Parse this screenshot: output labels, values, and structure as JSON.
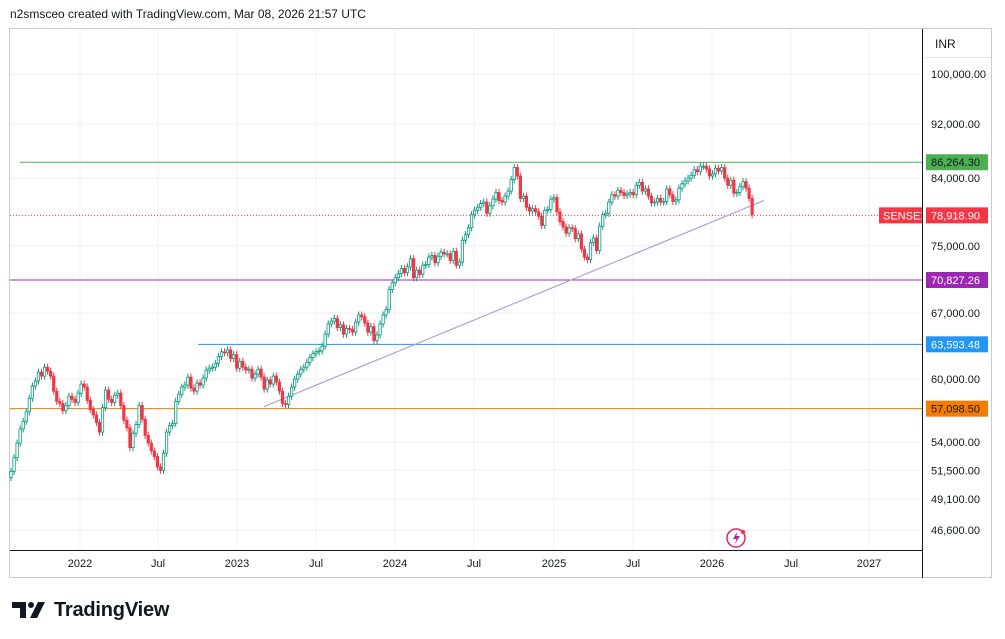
{
  "header": {
    "text": "n2smsceo created with TradingView.com, Mar 08, 2026 21:57 UTC"
  },
  "currency": "INR",
  "brand": {
    "name": "TradingView"
  },
  "chart_data": {
    "type": "candlestick",
    "symbol": "SENSEX",
    "last_price": 78918.9,
    "x_tick_labels": [
      "2022",
      "Jul",
      "2023",
      "Jul",
      "2024",
      "Jul",
      "2025",
      "Jul",
      "2026",
      "Jul",
      "2027"
    ],
    "y_tick_labels": [
      "100,000.00",
      "92,000.00",
      "84,000.00",
      "75,000.00",
      "67,000.00",
      "60,000.00",
      "54,000.00",
      "51,500.00",
      "49,100.00",
      "46,600.00"
    ],
    "horizontal_levels": [
      {
        "label": "86,264.30",
        "value": 86264.3,
        "color": "#4caf50"
      },
      {
        "label": "70,827.26",
        "value": 70827.26,
        "color": "#9c27b0"
      },
      {
        "label": "63,593.48",
        "value": 63593.48,
        "color": "#2196f3"
      },
      {
        "label": "57,098.50",
        "value": 57098.5,
        "color": "#f57c00"
      }
    ],
    "price_tag": {
      "symbol": "SENSEX",
      "label": "78,918.90",
      "color": "#f23645"
    },
    "trendline": {
      "from": {
        "date": "2023-03",
        "value": 57300
      },
      "to": {
        "date": "2026-05",
        "value": 80900
      },
      "color": "#b39ddb"
    },
    "weekly_closes": [
      51400,
      52600,
      53900,
      55200,
      55900,
      56800,
      58100,
      59300,
      59800,
      60700,
      60300,
      61200,
      60800,
      60300,
      58800,
      57800,
      57600,
      56900,
      57400,
      58300,
      58000,
      57700,
      58600,
      59500,
      59200,
      57900,
      57000,
      56500,
      55800,
      54900,
      57200,
      58900,
      58000,
      57700,
      58400,
      58600,
      57400,
      56000,
      55300,
      53500,
      54800,
      55600,
      57400,
      56100,
      54600,
      53900,
      53200,
      52700,
      51800,
      51500,
      53000,
      54900,
      55500,
      55700,
      57800,
      58500,
      59200,
      59400,
      60200,
      59100,
      58800,
      59600,
      59400,
      60100,
      60900,
      61100,
      61200,
      61600,
      62300,
      62800,
      62700,
      63000,
      62100,
      62500,
      61100,
      61800,
      61200,
      60900,
      61000,
      60100,
      60500,
      61000,
      60200,
      59000,
      59900,
      59500,
      60300,
      59700,
      58800,
      57600,
      57500,
      58300,
      59200,
      60000,
      60500,
      61000,
      61200,
      61700,
      62200,
      62600,
      62800,
      62900,
      63400,
      64700,
      65800,
      66100,
      66400,
      65400,
      65700,
      64700,
      65300,
      65200,
      64900,
      66000,
      66800,
      66600,
      65900,
      64900,
      65500,
      64000,
      64600,
      65800,
      66800,
      67400,
      69700,
      70500,
      71100,
      71600,
      72200,
      71700,
      72400,
      73400,
      71100,
      72000,
      71500,
      72600,
      72700,
      73600,
      73800,
      72900,
      73700,
      74200,
      74000,
      74000,
      73200,
      74300,
      72600,
      73000,
      75700,
      76400,
      77300,
      79000,
      79600,
      80000,
      80500,
      80700,
      79200,
      80200,
      81100,
      82000,
      80900,
      80700,
      81500,
      82200,
      83800,
      85500,
      84300,
      81200,
      81500,
      80000,
      79500,
      79800,
      79400,
      78800,
      77600,
      79600,
      79700,
      81100,
      81300,
      79400,
      78100,
      77400,
      76600,
      77300,
      77200,
      75900,
      76500,
      74600,
      73600,
      73300,
      75400,
      76000,
      74400,
      77500,
      79000,
      79200,
      80700,
      81700,
      81500,
      82300,
      82000,
      81600,
      81800,
      82000,
      81700,
      83000,
      83400,
      82200,
      82500,
      81500,
      80600,
      80700,
      81200,
      80700,
      80800,
      82500,
      81700,
      80800,
      81000,
      82600,
      83200,
      83600,
      84000,
      84400,
      85200,
      84900,
      85700,
      85700,
      85300,
      84300,
      84600,
      85400,
      85000,
      85500,
      84000,
      83000,
      83700,
      81900,
      82000,
      82800,
      83500,
      82600,
      81200,
      79000
    ]
  }
}
